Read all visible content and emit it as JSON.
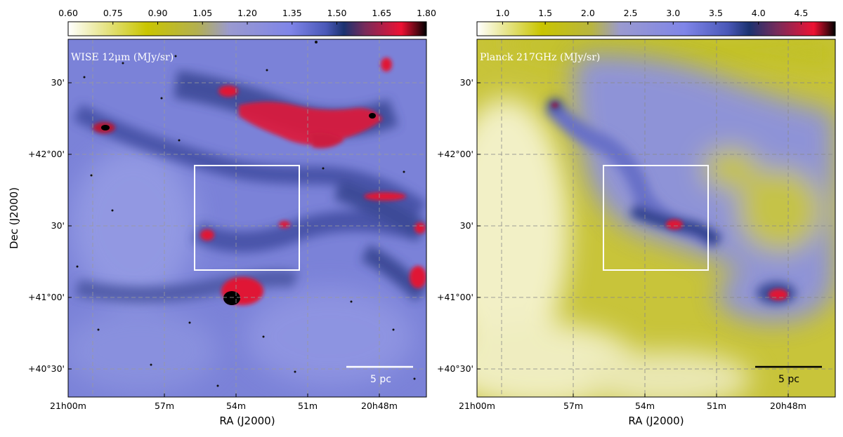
{
  "colors": {
    "wise_colormap": [
      "#ffffff",
      "#c8c400",
      "#8888ee",
      "#1a3a7a",
      "#ee1133",
      "#000000"
    ],
    "planck_colormap": [
      "#ffffff",
      "#c8c400",
      "#8888ee",
      "#1a3a7a",
      "#ee1133",
      "#000000"
    ],
    "wise_background": "#7b82d8",
    "planck_background": "#c8c43a",
    "box": "#ffffff",
    "grid": "#888888"
  },
  "panels": [
    {
      "id": "wise",
      "label": "WISE 12μm (MJy/sr)",
      "colorbar": {
        "min": 0.6,
        "max": 1.8,
        "ticks": [
          "0.60",
          "0.75",
          "0.90",
          "1.05",
          "1.20",
          "1.35",
          "1.50",
          "1.65",
          "1.80"
        ]
      },
      "ra_ticks": [
        "21h00m",
        "57m",
        "54m",
        "51m",
        "20h48m"
      ],
      "dec_ticks": [
        "30'",
        "+42°00'",
        "30'",
        "+41°00'",
        "+40°30'"
      ],
      "xlabel": "RA (J2000)",
      "ylabel": "Dec (J2000)",
      "scalebar": "5 pc"
    },
    {
      "id": "planck",
      "label": "Planck 217GHz (MJy/sr)",
      "colorbar": {
        "min": 0.7,
        "max": 4.9,
        "ticks": [
          "1.0",
          "1.5",
          "2.0",
          "2.5",
          "3.0",
          "3.5",
          "4.0",
          "4.5"
        ]
      },
      "ra_ticks": [
        "21h00m",
        "57m",
        "54m",
        "51m",
        "20h48m"
      ],
      "dec_ticks": [
        "30'",
        "+42°00'",
        "30'",
        "+41°00'",
        "+40°30'"
      ],
      "xlabel": "RA (J2000)",
      "ylabel": "",
      "scalebar": "5 pc"
    }
  ]
}
